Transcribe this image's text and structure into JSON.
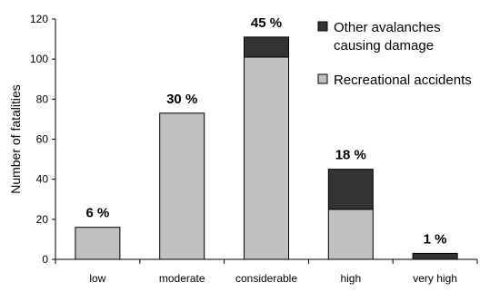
{
  "chart_data": {
    "type": "bar",
    "stacked": true,
    "ylabel": "Number of fatalities",
    "xlabel": "",
    "ylim": [
      0,
      120
    ],
    "yticks": [
      0,
      20,
      40,
      60,
      80,
      100,
      120
    ],
    "categories": [
      "low",
      "moderate",
      "considerable",
      "high",
      "very high"
    ],
    "series": [
      {
        "name": "Recreational accidents",
        "color": "#c0c0c0",
        "values": [
          16,
          73,
          101,
          25,
          0
        ]
      },
      {
        "name": "Other avalanches causing damage",
        "color": "#333333",
        "values": [
          0,
          0,
          10,
          20,
          3
        ]
      }
    ],
    "percent_labels": [
      "6 %",
      "30 %",
      "45 %",
      "18 %",
      "1 %"
    ],
    "legend": {
      "position": "top-right",
      "items": [
        {
          "lines": [
            "Other avalanches",
            "causing damage"
          ],
          "color": "#333333"
        },
        {
          "lines": [
            "Recreational accidents"
          ],
          "color": "#c0c0c0"
        }
      ]
    },
    "grid": false
  }
}
